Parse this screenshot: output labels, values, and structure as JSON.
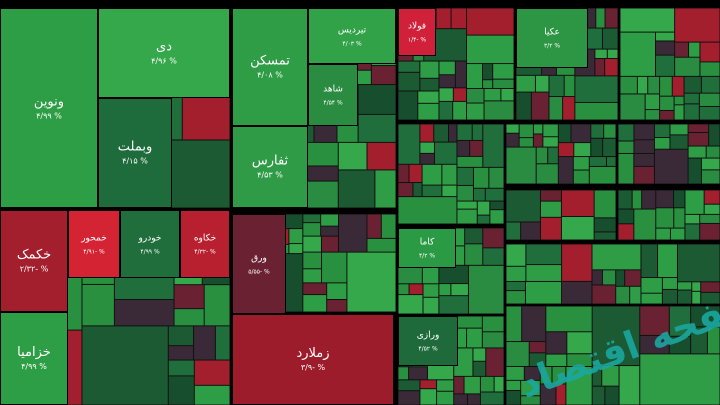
{
  "tiles": [
    {
      "name": "ونوین",
      "change": "% ۴/۹۹",
      "color": "#2e9e46"
    },
    {
      "name": "دی",
      "change": "% ۴/۹۶",
      "color": "#34a84b"
    },
    {
      "name": "وبملت",
      "change": "% ۴/۱۵",
      "color": "#1e6b3b"
    },
    {
      "name": "تمسکن",
      "change": "% ۴/۰۸",
      "color": "#2f9d45"
    },
    {
      "name": "تیردیس",
      "change": "% ۴/۰۳",
      "color": "#31a248"
    },
    {
      "name": "شاهد",
      "change": "% ۴/۵۴",
      "color": "#2a8c41"
    },
    {
      "name": "ثفارس",
      "change": "% ۴/۵۳",
      "color": "#2f9b46"
    },
    {
      "name": "خکمک",
      "change": "% -۲/۳۲",
      "color": "#a31f2d"
    },
    {
      "name": "خمحور",
      "change": "% -۴/۹۱",
      "color": "#d42433"
    },
    {
      "name": "خودرو",
      "change": "% ۴/۹۹",
      "color": "#1f6e3c"
    },
    {
      "name": "خکاوه",
      "change": "% -۴/۳۲",
      "color": "#b8202f"
    },
    {
      "name": "خزامیا",
      "change": "% ۴/۹۹",
      "color": "#2e9e46"
    },
    {
      "name": "ورق",
      "change": "% -۵/۵۵",
      "color": "#6a2232"
    },
    {
      "name": "زملارد",
      "change": "% -۳/۹",
      "color": "#9d1c2b"
    },
    {
      "name": "کاما",
      "change": "% ۴/۲",
      "color": "#2a9a44"
    },
    {
      "name": "ورازی",
      "change": "% ۴/۵۲",
      "color": "#1f6a3b"
    },
    {
      "name": "فولاد",
      "change": "% -۱/۴",
      "color": "#d0203a"
    },
    {
      "name": "عکیا",
      "change": "% ۳/۲",
      "color": "#2d9644"
    }
  ],
  "watermark": "صفحه اقتصاد"
}
